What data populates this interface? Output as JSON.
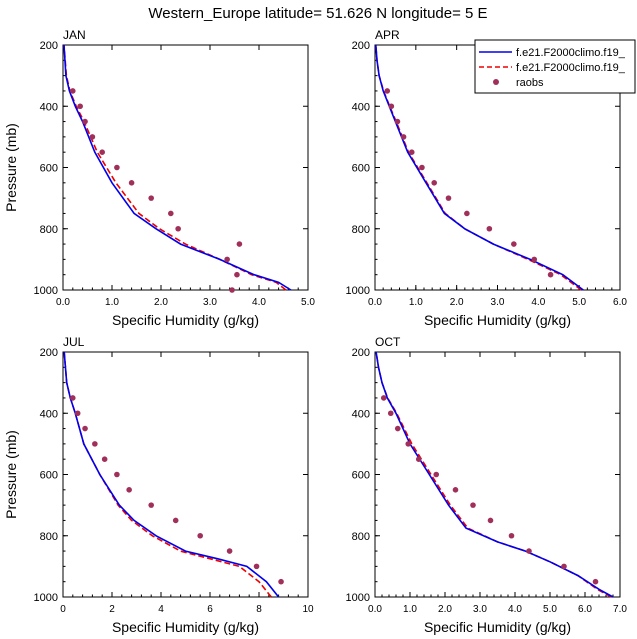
{
  "figure_title": "Western_Europe  latitude= 51.626 N longitude= 5 E",
  "colors": {
    "model1": "#0000ee",
    "model2": "#ee0000",
    "raobs": "#a0305a",
    "axis": "#000000"
  },
  "legend": {
    "entries": [
      "f.e21.F2000climo.f19_",
      "f.e21.F2000climo.f19_",
      "raobs"
    ]
  },
  "chart_data": [
    {
      "type": "line",
      "title": "JAN",
      "xlabel": "Specific Humidity (g/kg)",
      "ylabel": "Pressure (mb)",
      "xlim": [
        0,
        5
      ],
      "ylim": [
        1000,
        200
      ],
      "xticks": [
        "0.0",
        "1.0",
        "2.0",
        "3.0",
        "4.0",
        "5.0"
      ],
      "yticks": [
        "200",
        "400",
        "600",
        "800",
        "1000"
      ],
      "series": [
        {
          "name": "f.e21.F2000climo.f19_ (solid)",
          "style": "solid",
          "x": [
            4.65,
            4.4,
            3.9,
            3.2,
            2.4,
            1.9,
            1.45,
            1.0,
            0.65,
            0.4,
            0.25,
            0.13,
            0.06,
            0.02
          ],
          "y": [
            1000,
            975,
            950,
            900,
            850,
            800,
            750,
            650,
            550,
            450,
            400,
            350,
            300,
            200
          ]
        },
        {
          "name": "f.e21.F2000climo.f19_ (dashed)",
          "style": "dashed",
          "x": [
            4.55,
            4.35,
            3.85,
            3.2,
            2.5,
            1.97,
            1.55,
            1.08,
            0.7,
            0.43,
            0.27,
            0.14,
            0.07,
            0.02
          ],
          "y": [
            1000,
            975,
            950,
            900,
            850,
            800,
            750,
            650,
            550,
            450,
            400,
            350,
            300,
            200
          ]
        },
        {
          "name": "raobs",
          "style": "markers",
          "x": [
            3.45,
            3.55,
            3.35,
            3.6,
            2.35,
            2.2,
            1.8,
            1.4,
            1.1,
            0.8,
            0.6,
            0.45,
            0.35,
            0.2
          ],
          "y": [
            1000,
            950,
            900,
            850,
            800,
            750,
            700,
            650,
            600,
            550,
            500,
            450,
            400,
            350
          ]
        }
      ]
    },
    {
      "type": "line",
      "title": "APR",
      "xlabel": "Specific Humidity (g/kg)",
      "ylabel": "",
      "xlim": [
        0,
        6
      ],
      "ylim": [
        1000,
        200
      ],
      "xticks": [
        "0.0",
        "1.0",
        "2.0",
        "3.0",
        "4.0",
        "5.0",
        "6.0"
      ],
      "yticks": [
        "200",
        "400",
        "600",
        "800",
        "1000"
      ],
      "series": [
        {
          "name": "f.e21.F2000climo.f19_ (solid)",
          "style": "solid",
          "x": [
            5.1,
            4.6,
            3.8,
            2.9,
            2.2,
            1.7,
            1.25,
            0.8,
            0.5,
            0.35,
            0.2,
            0.1,
            0.05,
            0.02
          ],
          "y": [
            1000,
            950,
            900,
            850,
            800,
            750,
            650,
            550,
            450,
            400,
            350,
            300,
            250,
            200
          ]
        },
        {
          "name": "f.e21.F2000climo.f19_ (dashed)",
          "style": "dashed",
          "x": [
            5.05,
            4.55,
            3.75,
            2.9,
            2.2,
            1.72,
            1.27,
            0.82,
            0.52,
            0.36,
            0.21,
            0.1,
            0.05,
            0.02
          ],
          "y": [
            1000,
            950,
            900,
            850,
            800,
            750,
            650,
            550,
            450,
            400,
            350,
            300,
            250,
            200
          ]
        },
        {
          "name": "raobs",
          "style": "markers",
          "x": [
            4.3,
            3.9,
            3.4,
            2.8,
            2.25,
            1.8,
            1.45,
            1.15,
            0.9,
            0.7,
            0.55,
            0.4,
            0.3
          ],
          "y": [
            950,
            900,
            850,
            800,
            750,
            700,
            650,
            600,
            550,
            500,
            450,
            400,
            350
          ]
        }
      ]
    },
    {
      "type": "line",
      "title": "JUL",
      "xlabel": "Specific Humidity (g/kg)",
      "ylabel": "Pressure (mb)",
      "xlim": [
        0,
        10
      ],
      "ylim": [
        1000,
        200
      ],
      "xticks": [
        "0",
        "2",
        "4",
        "6",
        "8",
        "10"
      ],
      "yticks": [
        "200",
        "400",
        "600",
        "800",
        "1000"
      ],
      "series": [
        {
          "name": "f.e21.F2000climo.f19_ (solid)",
          "style": "solid",
          "x": [
            8.8,
            8.3,
            7.5,
            6.3,
            5.0,
            3.8,
            2.9,
            2.3,
            1.5,
            0.85,
            0.5,
            0.3,
            0.15,
            0.05
          ],
          "y": [
            1000,
            950,
            900,
            875,
            850,
            800,
            750,
            700,
            600,
            500,
            400,
            350,
            300,
            200
          ]
        },
        {
          "name": "f.e21.F2000climo.f19_ (dashed)",
          "style": "dashed",
          "x": [
            8.5,
            8.0,
            7.2,
            6.0,
            4.8,
            3.65,
            2.8,
            2.25,
            1.5,
            0.85,
            0.5,
            0.3,
            0.15,
            0.05
          ],
          "y": [
            1000,
            950,
            900,
            875,
            850,
            800,
            750,
            700,
            600,
            500,
            400,
            350,
            300,
            200
          ]
        },
        {
          "name": "raobs",
          "style": "markers",
          "x": [
            8.9,
            7.9,
            6.8,
            5.6,
            4.6,
            3.6,
            2.7,
            2.2,
            1.7,
            1.3,
            0.9,
            0.6,
            0.4
          ],
          "y": [
            950,
            900,
            850,
            800,
            750,
            700,
            650,
            600,
            550,
            500,
            450,
            400,
            350
          ]
        }
      ]
    },
    {
      "type": "line",
      "title": "OCT",
      "xlabel": "Specific Humidity (g/kg)",
      "ylabel": "",
      "xlim": [
        0,
        7
      ],
      "ylim": [
        1000,
        200
      ],
      "xticks": [
        "0.0",
        "1.0",
        "2.0",
        "3.0",
        "4.0",
        "5.0",
        "6.0",
        "7.0"
      ],
      "yticks": [
        "200",
        "400",
        "600",
        "800",
        "1000"
      ],
      "series": [
        {
          "name": "f.e21.F2000climo.f19_ (solid)",
          "style": "solid",
          "x": [
            6.8,
            6.4,
            5.8,
            5.0,
            4.3,
            3.5,
            2.6,
            2.1,
            1.55,
            1.0,
            0.6,
            0.35,
            0.2,
            0.1,
            0.03
          ],
          "y": [
            1000,
            975,
            930,
            885,
            850,
            820,
            775,
            700,
            600,
            500,
            400,
            350,
            300,
            250,
            200
          ]
        },
        {
          "name": "f.e21.F2000climo.f19_ (dashed)",
          "style": "dashed",
          "x": [
            6.75,
            6.35,
            5.8,
            5.0,
            4.3,
            3.5,
            2.65,
            2.15,
            1.6,
            1.05,
            0.62,
            0.36,
            0.2,
            0.1,
            0.03
          ],
          "y": [
            1000,
            975,
            930,
            885,
            850,
            820,
            775,
            700,
            600,
            500,
            400,
            350,
            300,
            250,
            200
          ]
        },
        {
          "name": "raobs",
          "style": "markers",
          "x": [
            6.3,
            5.4,
            4.4,
            3.9,
            3.3,
            2.8,
            2.3,
            1.75,
            1.25,
            0.95,
            0.65,
            0.45,
            0.25
          ],
          "y": [
            950,
            900,
            850,
            800,
            750,
            700,
            650,
            600,
            550,
            500,
            450,
            400,
            350
          ]
        }
      ]
    }
  ]
}
